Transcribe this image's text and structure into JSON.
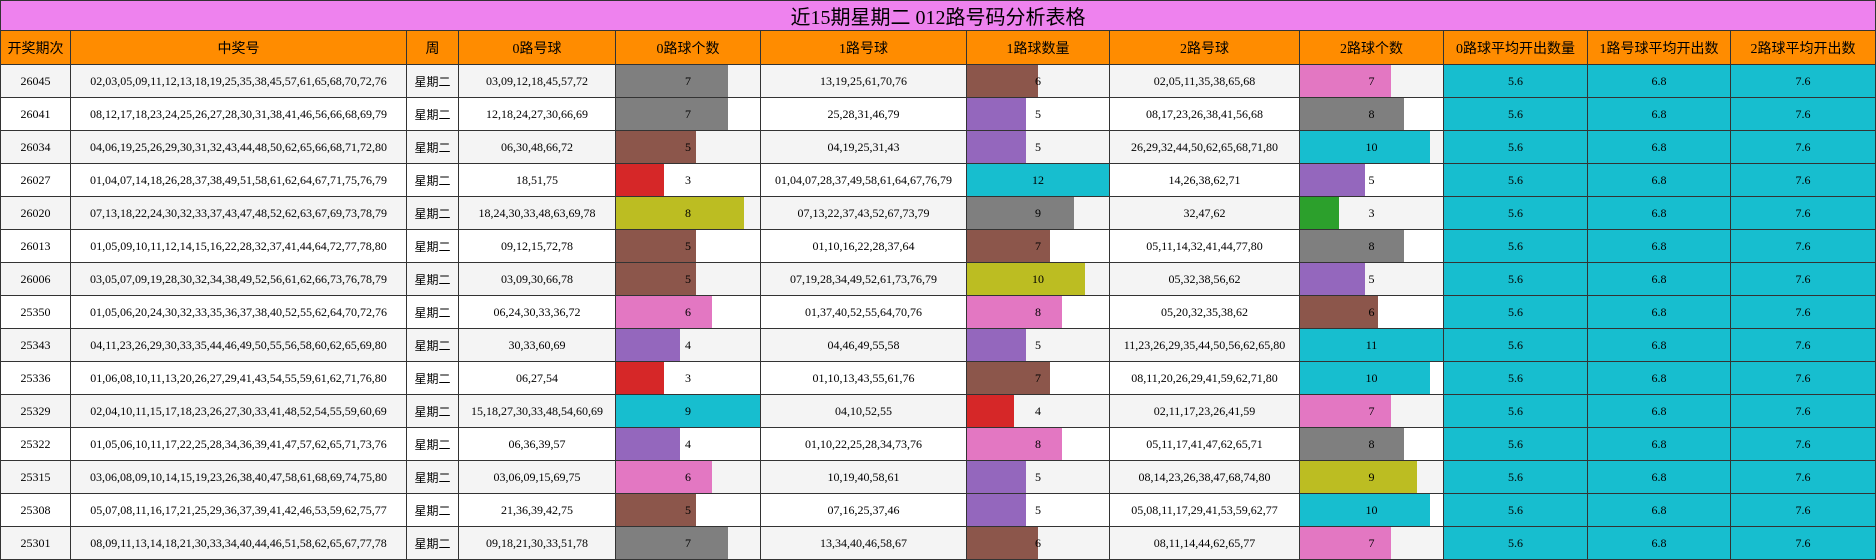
{
  "title": "近15期星期二 012路号码分析表格",
  "table": {
    "columns": [
      "开奖期次",
      "中奖号",
      "周",
      "0路号球",
      "0路球个数",
      "1路号球",
      "1路球数量",
      "2路号球",
      "2路球个数",
      "0路球平均开出数量",
      "1路号球平均开出数",
      "2路球平均开出数"
    ],
    "rows": [
      [
        "26045",
        "02,03,05,09,11,12,13,18,19,25,35,38,45,57,61,65,68,70,72,76",
        "星期二",
        "03,09,12,18,45,57,72",
        7,
        "13,19,25,61,70,76",
        6,
        "02,05,11,35,38,65,68",
        7,
        5.6,
        6.8,
        7.6
      ],
      [
        "26041",
        "08,12,17,18,23,24,25,26,27,28,30,31,38,41,46,56,66,68,69,79",
        "星期二",
        "12,18,24,27,30,66,69",
        7,
        "25,28,31,46,79",
        5,
        "08,17,23,26,38,41,56,68",
        8,
        5.6,
        6.8,
        7.6
      ],
      [
        "26034",
        "04,06,19,25,26,29,30,31,32,43,44,48,50,62,65,66,68,71,72,80",
        "星期二",
        "06,30,48,66,72",
        5,
        "04,19,25,31,43",
        5,
        "26,29,32,44,50,62,65,68,71,80",
        10,
        5.6,
        6.8,
        7.6
      ],
      [
        "26027",
        "01,04,07,14,18,26,28,37,38,49,51,58,61,62,64,67,71,75,76,79",
        "星期二",
        "18,51,75",
        3,
        "01,04,07,28,37,49,58,61,64,67,76,79",
        12,
        "14,26,38,62,71",
        5,
        5.6,
        6.8,
        7.6
      ],
      [
        "26020",
        "07,13,18,22,24,30,32,33,37,43,47,48,52,62,63,67,69,73,78,79",
        "星期二",
        "18,24,30,33,48,63,69,78",
        8,
        "07,13,22,37,43,52,67,73,79",
        9,
        "32,47,62",
        3,
        5.6,
        6.8,
        7.6
      ],
      [
        "26013",
        "01,05,09,10,11,12,14,15,16,22,28,32,37,41,44,64,72,77,78,80",
        "星期二",
        "09,12,15,72,78",
        5,
        "01,10,16,22,28,37,64",
        7,
        "05,11,14,32,41,44,77,80",
        8,
        5.6,
        6.8,
        7.6
      ],
      [
        "26006",
        "03,05,07,09,19,28,30,32,34,38,49,52,56,61,62,66,73,76,78,79",
        "星期二",
        "03,09,30,66,78",
        5,
        "07,19,28,34,49,52,61,73,76,79",
        10,
        "05,32,38,56,62",
        5,
        5.6,
        6.8,
        7.6
      ],
      [
        "25350",
        "01,05,06,20,24,30,32,33,35,36,37,38,40,52,55,62,64,70,72,76",
        "星期二",
        "06,24,30,33,36,72",
        6,
        "01,37,40,52,55,64,70,76",
        8,
        "05,20,32,35,38,62",
        6,
        5.6,
        6.8,
        7.6
      ],
      [
        "25343",
        "04,11,23,26,29,30,33,35,44,46,49,50,55,56,58,60,62,65,69,80",
        "星期二",
        "30,33,60,69",
        4,
        "04,46,49,55,58",
        5,
        "11,23,26,29,35,44,50,56,62,65,80",
        11,
        5.6,
        6.8,
        7.6
      ],
      [
        "25336",
        "01,06,08,10,11,13,20,26,27,29,41,43,54,55,59,61,62,71,76,80",
        "星期二",
        "06,27,54",
        3,
        "01,10,13,43,55,61,76",
        7,
        "08,11,20,26,29,41,59,62,71,80",
        10,
        5.6,
        6.8,
        7.6
      ],
      [
        "25329",
        "02,04,10,11,15,17,18,23,26,27,30,33,41,48,52,54,55,59,60,69",
        "星期二",
        "15,18,27,30,33,48,54,60,69",
        9,
        "04,10,52,55",
        4,
        "02,11,17,23,26,41,59",
        7,
        5.6,
        6.8,
        7.6
      ],
      [
        "25322",
        "01,05,06,10,11,17,22,25,28,34,36,39,41,47,57,62,65,71,73,76",
        "星期二",
        "06,36,39,57",
        4,
        "01,10,22,25,28,34,73,76",
        8,
        "05,11,17,41,47,62,65,71",
        8,
        5.6,
        6.8,
        7.6
      ],
      [
        "25315",
        "03,06,08,09,10,14,15,19,23,26,38,40,47,58,61,68,69,74,75,80",
        "星期二",
        "03,06,09,15,69,75",
        6,
        "10,19,40,58,61",
        5,
        "08,14,23,26,38,47,68,74,80",
        9,
        5.6,
        6.8,
        7.6
      ],
      [
        "25308",
        "05,07,08,11,16,17,21,25,29,36,37,39,41,42,46,53,59,62,75,77",
        "星期二",
        "21,36,39,42,75",
        5,
        "07,16,25,37,46",
        5,
        "05,08,11,17,29,41,53,59,62,77",
        10,
        5.6,
        6.8,
        7.6
      ],
      [
        "25301",
        "08,09,11,13,14,18,21,30,33,34,40,44,46,51,58,62,65,67,77,78",
        "星期二",
        "09,18,21,30,33,51,78",
        7,
        "13,34,40,46,58,67",
        6,
        "08,11,14,44,62,65,77",
        7,
        5.6,
        6.8,
        7.6
      ]
    ],
    "bar_colors": [
      [
        "#7f7f7f",
        "#8c564b",
        "#e377c2"
      ],
      [
        "#7f7f7f",
        "#9467bd",
        "#7f7f7f"
      ],
      [
        "#8c564b",
        "#9467bd",
        "#17becf"
      ],
      [
        "#d62728",
        "#17becf",
        "#9467bd"
      ],
      [
        "#bcbd22",
        "#7f7f7f",
        "#2ca02c"
      ],
      [
        "#8c564b",
        "#8c564b",
        "#7f7f7f"
      ],
      [
        "#8c564b",
        "#bcbd22",
        "#9467bd"
      ],
      [
        "#e377c2",
        "#e377c2",
        "#8c564b"
      ],
      [
        "#9467bd",
        "#9467bd",
        "#17becf"
      ],
      [
        "#d62728",
        "#8c564b",
        "#17becf"
      ],
      [
        "#17becf",
        "#d62728",
        "#e377c2"
      ],
      [
        "#9467bd",
        "#e377c2",
        "#7f7f7f"
      ],
      [
        "#e377c2",
        "#9467bd",
        "#bcbd22"
      ],
      [
        "#8c564b",
        "#9467bd",
        "#17becf"
      ],
      [
        "#7f7f7f",
        "#8c564b",
        "#e377c2"
      ]
    ]
  }
}
